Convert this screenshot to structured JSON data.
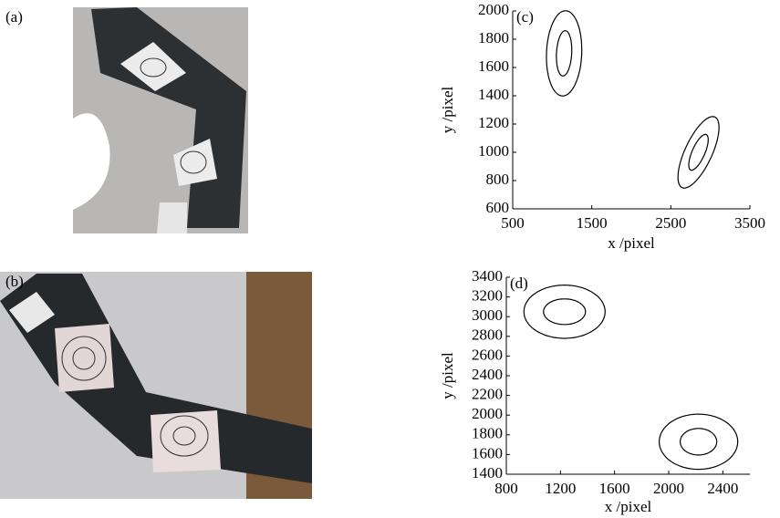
{
  "photos": [
    {
      "label": "(a)"
    },
    {
      "label": "(b)"
    }
  ],
  "chart_data": [
    {
      "type": "ellipse",
      "label": "(c)",
      "x_label": "x /pixel",
      "y_label": "y /pixel",
      "xlim": [
        500,
        3500
      ],
      "xticks": [
        500,
        1500,
        2500,
        3500
      ],
      "ylim": [
        600,
        2000
      ],
      "yticks": [
        600,
        800,
        1000,
        1200,
        1400,
        1600,
        1800,
        2000
      ],
      "color": "#000000",
      "ellipses": [
        {
          "center": [
            1150,
            1700
          ],
          "axis1": [
            40,
            300
          ],
          "axis2": [
            220,
            -30
          ]
        },
        {
          "center": [
            1150,
            1700
          ],
          "axis1": [
            20,
            160
          ],
          "axis2": [
            95,
            -10
          ]
        },
        {
          "center": [
            2850,
            1000
          ],
          "axis1": [
            230,
            240
          ],
          "axis2": [
            120,
            -80
          ]
        },
        {
          "center": [
            2850,
            1000
          ],
          "axis1": [
            110,
            120
          ],
          "axis2": [
            55,
            -40
          ]
        }
      ]
    },
    {
      "type": "ellipse",
      "label": "(d)",
      "x_label": "x /pixel",
      "y_label": "y /pixel",
      "xlim": [
        800,
        2600
      ],
      "xticks": [
        800,
        1200,
        1600,
        2000,
        2400
      ],
      "ylim": [
        1400,
        3400
      ],
      "yticks": [
        1400,
        1600,
        1800,
        2000,
        2200,
        2400,
        2600,
        2800,
        3000,
        3200,
        3400
      ],
      "color": "#000000",
      "ellipses": [
        {
          "center": [
            1230,
            3050
          ],
          "axis1": [
            300,
            0
          ],
          "axis2": [
            0,
            270
          ]
        },
        {
          "center": [
            1230,
            3050
          ],
          "axis1": [
            155,
            0
          ],
          "axis2": [
            0,
            130
          ]
        },
        {
          "center": [
            2220,
            1730
          ],
          "axis1": [
            290,
            0
          ],
          "axis2": [
            0,
            280
          ]
        },
        {
          "center": [
            2220,
            1730
          ],
          "axis1": [
            135,
            0
          ],
          "axis2": [
            0,
            135
          ]
        }
      ]
    }
  ]
}
